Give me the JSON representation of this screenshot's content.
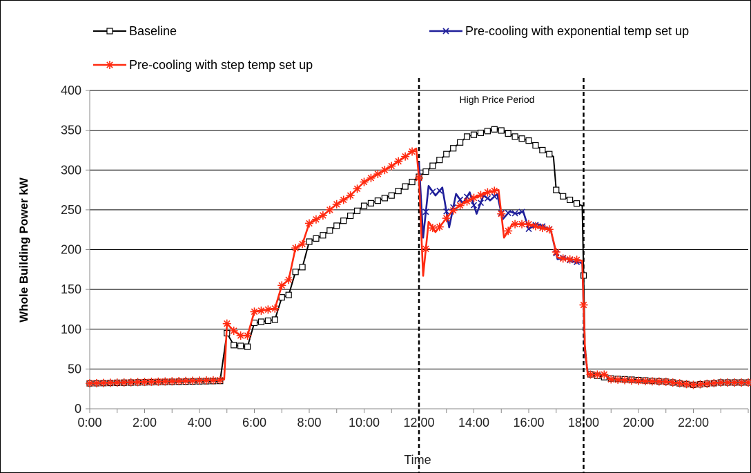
{
  "chart_data": {
    "type": "line",
    "xlabel": "Time",
    "ylabel": "Whole Building Power    kW",
    "ylim": [
      0,
      400
    ],
    "yticks": [
      "0",
      "50",
      "100",
      "150",
      "200",
      "250",
      "300",
      "350",
      "400"
    ],
    "xlim": [
      0,
      24
    ],
    "xticks": [
      "0:00",
      "2:00",
      "4:00",
      "6:00",
      "8:00",
      "10:00",
      "12:00",
      "14:00",
      "16:00",
      "18:00",
      "20:00",
      "22:00"
    ],
    "grid": "horizontal",
    "legend_position": "top",
    "annotation": {
      "text": "High Price Period",
      "start": "12:00",
      "end": "18:00"
    },
    "series": [
      {
        "name": "Baseline",
        "color": "#000000",
        "marker": "square",
        "points": [
          [
            0,
            32
          ],
          [
            4.75,
            35
          ],
          [
            5.0,
            95
          ],
          [
            5.25,
            80
          ],
          [
            5.75,
            78
          ],
          [
            6.0,
            108
          ],
          [
            6.75,
            112
          ],
          [
            7.0,
            140
          ],
          [
            7.25,
            143
          ],
          [
            7.5,
            172
          ],
          [
            7.75,
            178
          ],
          [
            8.0,
            210
          ],
          [
            8.5,
            218
          ],
          [
            9,
            230
          ],
          [
            10,
            255
          ],
          [
            11,
            268
          ],
          [
            11.75,
            285
          ],
          [
            12.25,
            298
          ],
          [
            13,
            320
          ],
          [
            13.75,
            342
          ],
          [
            14.5,
            349
          ],
          [
            14.85,
            352
          ],
          [
            15.5,
            342
          ],
          [
            16,
            337
          ],
          [
            16.5,
            325
          ],
          [
            16.9,
            317
          ],
          [
            17.0,
            275
          ],
          [
            17.25,
            267
          ],
          [
            17.75,
            258
          ],
          [
            17.95,
            255
          ],
          [
            18.05,
            80
          ],
          [
            18.15,
            44
          ],
          [
            19,
            38
          ],
          [
            20,
            36
          ],
          [
            21,
            34
          ],
          [
            22,
            30
          ],
          [
            23,
            33
          ],
          [
            24,
            33
          ]
        ]
      },
      {
        "name": "Pre-cooling with exponential temp set up",
        "color": "#1f1f9a",
        "marker": "x",
        "points": [
          [
            12.0,
            310
          ],
          [
            12.15,
            215
          ],
          [
            12.35,
            280
          ],
          [
            12.6,
            268
          ],
          [
            12.85,
            278
          ],
          [
            13.1,
            228
          ],
          [
            13.35,
            270
          ],
          [
            13.6,
            258
          ],
          [
            13.85,
            272
          ],
          [
            14.1,
            245
          ],
          [
            14.35,
            268
          ],
          [
            14.6,
            262
          ],
          [
            14.85,
            270
          ],
          [
            15.05,
            238
          ],
          [
            15.3,
            248
          ],
          [
            15.55,
            245
          ],
          [
            15.8,
            248
          ],
          [
            16.0,
            226
          ],
          [
            16.3,
            232
          ],
          [
            16.6,
            228
          ],
          [
            16.8,
            225
          ],
          [
            17.05,
            188
          ],
          [
            17.3,
            190
          ],
          [
            17.6,
            185
          ],
          [
            17.85,
            184
          ],
          [
            17.95,
            183
          ],
          [
            18.05,
            70
          ],
          [
            18.15,
            45
          ]
        ]
      },
      {
        "name": "Pre-cooling with step temp set up",
        "color": "#ff2a10",
        "marker": "asterisk",
        "points": [
          [
            0,
            32
          ],
          [
            4.75,
            36
          ],
          [
            4.9,
            37
          ],
          [
            5.0,
            107
          ],
          [
            5.25,
            98
          ],
          [
            5.5,
            92
          ],
          [
            5.75,
            92
          ],
          [
            6.0,
            122
          ],
          [
            6.75,
            126
          ],
          [
            7.0,
            155
          ],
          [
            7.25,
            162
          ],
          [
            7.5,
            202
          ],
          [
            7.75,
            207
          ],
          [
            8.0,
            233
          ],
          [
            8.5,
            243
          ],
          [
            9,
            257
          ],
          [
            9.5,
            268
          ],
          [
            10,
            285
          ],
          [
            10.5,
            295
          ],
          [
            11,
            305
          ],
          [
            11.5,
            317
          ],
          [
            11.9,
            327
          ],
          [
            12.0,
            290
          ],
          [
            12.15,
            167
          ],
          [
            12.35,
            235
          ],
          [
            12.6,
            222
          ],
          [
            12.85,
            233
          ],
          [
            13.2,
            248
          ],
          [
            13.6,
            258
          ],
          [
            14,
            265
          ],
          [
            14.5,
            272
          ],
          [
            14.9,
            275
          ],
          [
            15.1,
            215
          ],
          [
            15.4,
            232
          ],
          [
            15.7,
            232
          ],
          [
            16.0,
            232
          ],
          [
            16.4,
            228
          ],
          [
            16.8,
            225
          ],
          [
            17.05,
            190
          ],
          [
            17.4,
            188
          ],
          [
            17.8,
            187
          ],
          [
            17.95,
            186
          ],
          [
            18.05,
            75
          ],
          [
            18.15,
            43
          ],
          [
            18.75,
            43
          ],
          [
            19,
            37
          ],
          [
            20,
            35
          ],
          [
            21,
            34
          ],
          [
            22,
            30
          ],
          [
            23,
            33
          ],
          [
            24,
            33
          ]
        ]
      }
    ]
  }
}
